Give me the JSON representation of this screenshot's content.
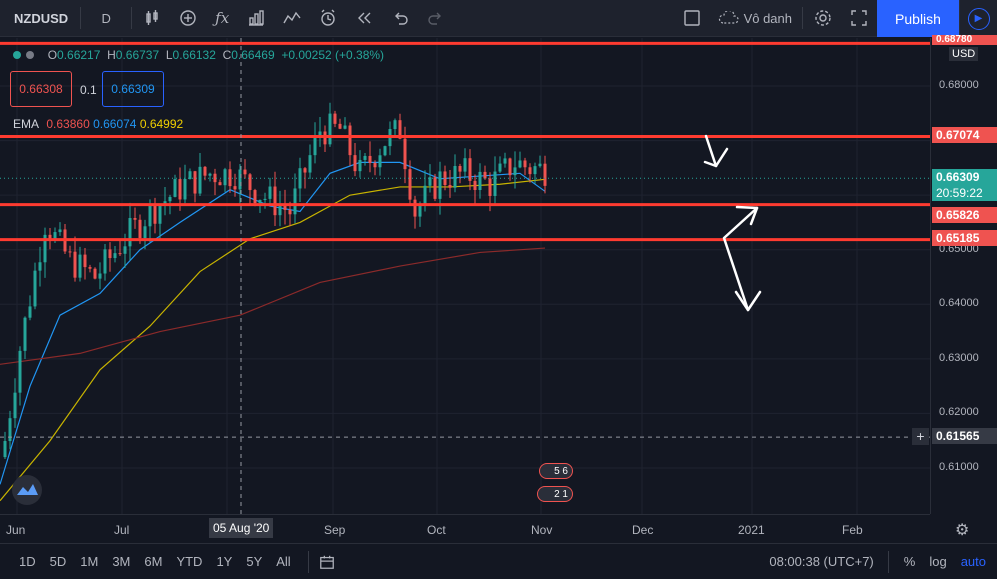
{
  "toolbar": {
    "symbol": "NZDUSD",
    "interval": "D",
    "layout_name": "Vô danh",
    "publish": "Publish"
  },
  "ohlc": {
    "o_label": "O",
    "o": "0.66217",
    "h_label": "H",
    "h": "0.66737",
    "l_label": "L",
    "l": "0.66132",
    "c_label": "C",
    "c": "0.66469",
    "change": "+0.00252 (+0.38%)"
  },
  "bidask": {
    "sell": "0.66308",
    "spread": "0.1",
    "buy": "0.66309"
  },
  "ema": {
    "label": "EMA",
    "v1": "0.63860",
    "v2": "0.66074",
    "v3": "0.64992"
  },
  "price_axis": {
    "currency": "USD",
    "ticks": [
      "0.68000",
      "0.67000",
      "0.66000",
      "0.65000",
      "0.64000",
      "0.63000",
      "0.62000",
      "0.61000"
    ],
    "labels": {
      "top": "0.68780",
      "r1": "0.67074",
      "last": "0.66309",
      "countdown": "20:59:22",
      "s1": "0.65826",
      "s2": "0.65185",
      "cross": "0.61565"
    }
  },
  "time_axis": {
    "labels": [
      "Jun",
      "Jul",
      "05 Aug '20",
      "Sep",
      "Oct",
      "Nov",
      "Dec",
      "2021",
      "Feb"
    ]
  },
  "events": {
    "e1": "5 6",
    "e2": "2 1"
  },
  "bottom": {
    "ranges": [
      "1D",
      "5D",
      "1M",
      "3M",
      "6M",
      "YTD",
      "1Y",
      "5Y",
      "All"
    ],
    "time": "08:00:38 (UTC+7)",
    "percent": "%",
    "log": "log",
    "auto": "auto"
  },
  "colors": {
    "up": "#26a69a",
    "down": "#ef5350",
    "line_red": "#ff3b30",
    "ema_blue": "#2196f3",
    "ema_yellow": "#c8b400",
    "ema_dark": "#8b2a2a"
  }
}
